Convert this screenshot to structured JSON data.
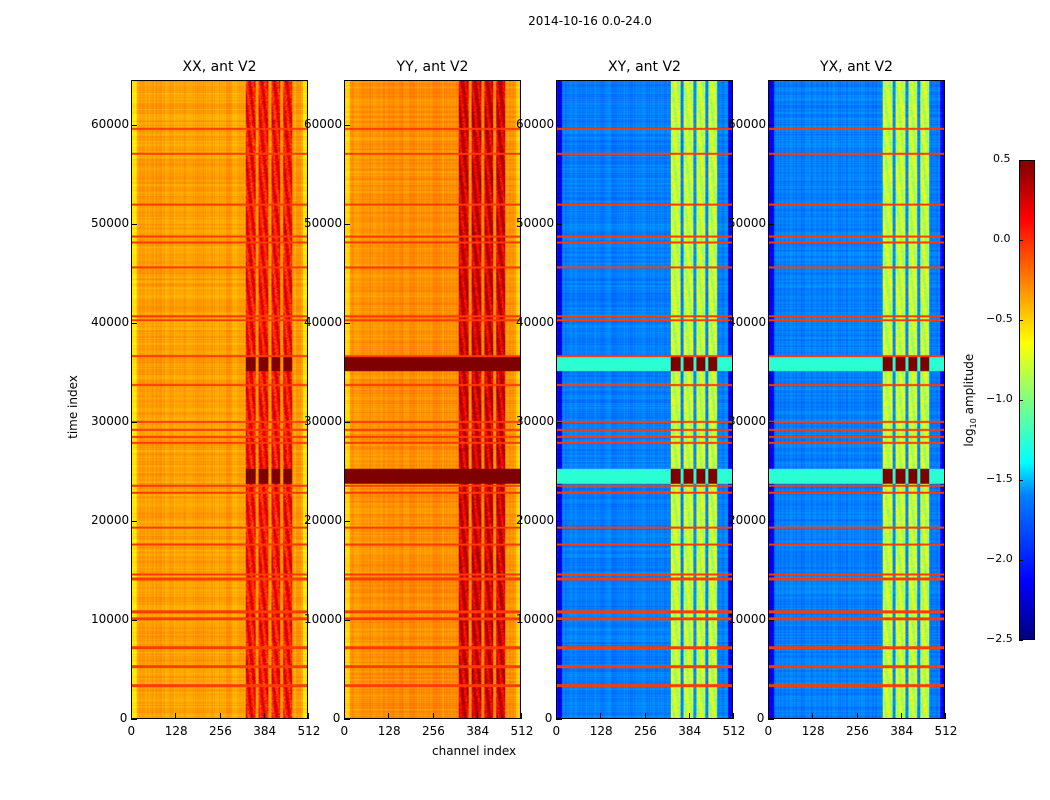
{
  "chart_data": {
    "type": "heatmap",
    "title": "2014-10-16 0.0-24.0",
    "xlabel": "channel index",
    "ylabel": "time index",
    "xlim": [
      0,
      512
    ],
    "ylim": [
      0,
      64512
    ],
    "xticks": [
      "0",
      "128",
      "256",
      "384",
      "512"
    ],
    "yticks": [
      "0",
      "10000",
      "20000",
      "30000",
      "40000",
      "50000",
      "60000"
    ],
    "colorbar": {
      "label_main": "log",
      "label_sub": "10",
      "label_rest": " amplitude",
      "range": [
        -2.5,
        0.5
      ],
      "ticks": [
        "0.5",
        "0.0",
        "−0.5",
        "−1.0",
        "−1.5",
        "−2.0",
        "−2.5"
      ],
      "colormap": "jet"
    },
    "panels": [
      {
        "title": "XX, ant V2",
        "baseline": -0.35,
        "band_level": 0.1
      },
      {
        "title": "YY, ant V2",
        "baseline": -0.3,
        "band_level": 0.25
      },
      {
        "title": "XY, ant V2",
        "baseline": -1.75,
        "band_level": -0.8
      },
      {
        "title": "YX, ant V2",
        "baseline": -1.75,
        "band_level": -0.8
      }
    ],
    "high_channel_bands": [
      [
        330,
        360
      ],
      [
        370,
        398
      ],
      [
        405,
        432
      ],
      [
        440,
        468
      ]
    ],
    "flagged_time_rows": [
      3333,
      5250,
      7170,
      10100,
      10800,
      14140,
      14550,
      17580,
      19300,
      22830,
      23540,
      27880,
      28480,
      29190,
      30000,
      33740,
      36670,
      40300,
      40700,
      45660,
      48180,
      48790,
      52020,
      57170,
      59700
    ],
    "saturated_time_ranges": [
      [
        23800,
        25300
      ],
      [
        35200,
        36800
      ]
    ]
  }
}
